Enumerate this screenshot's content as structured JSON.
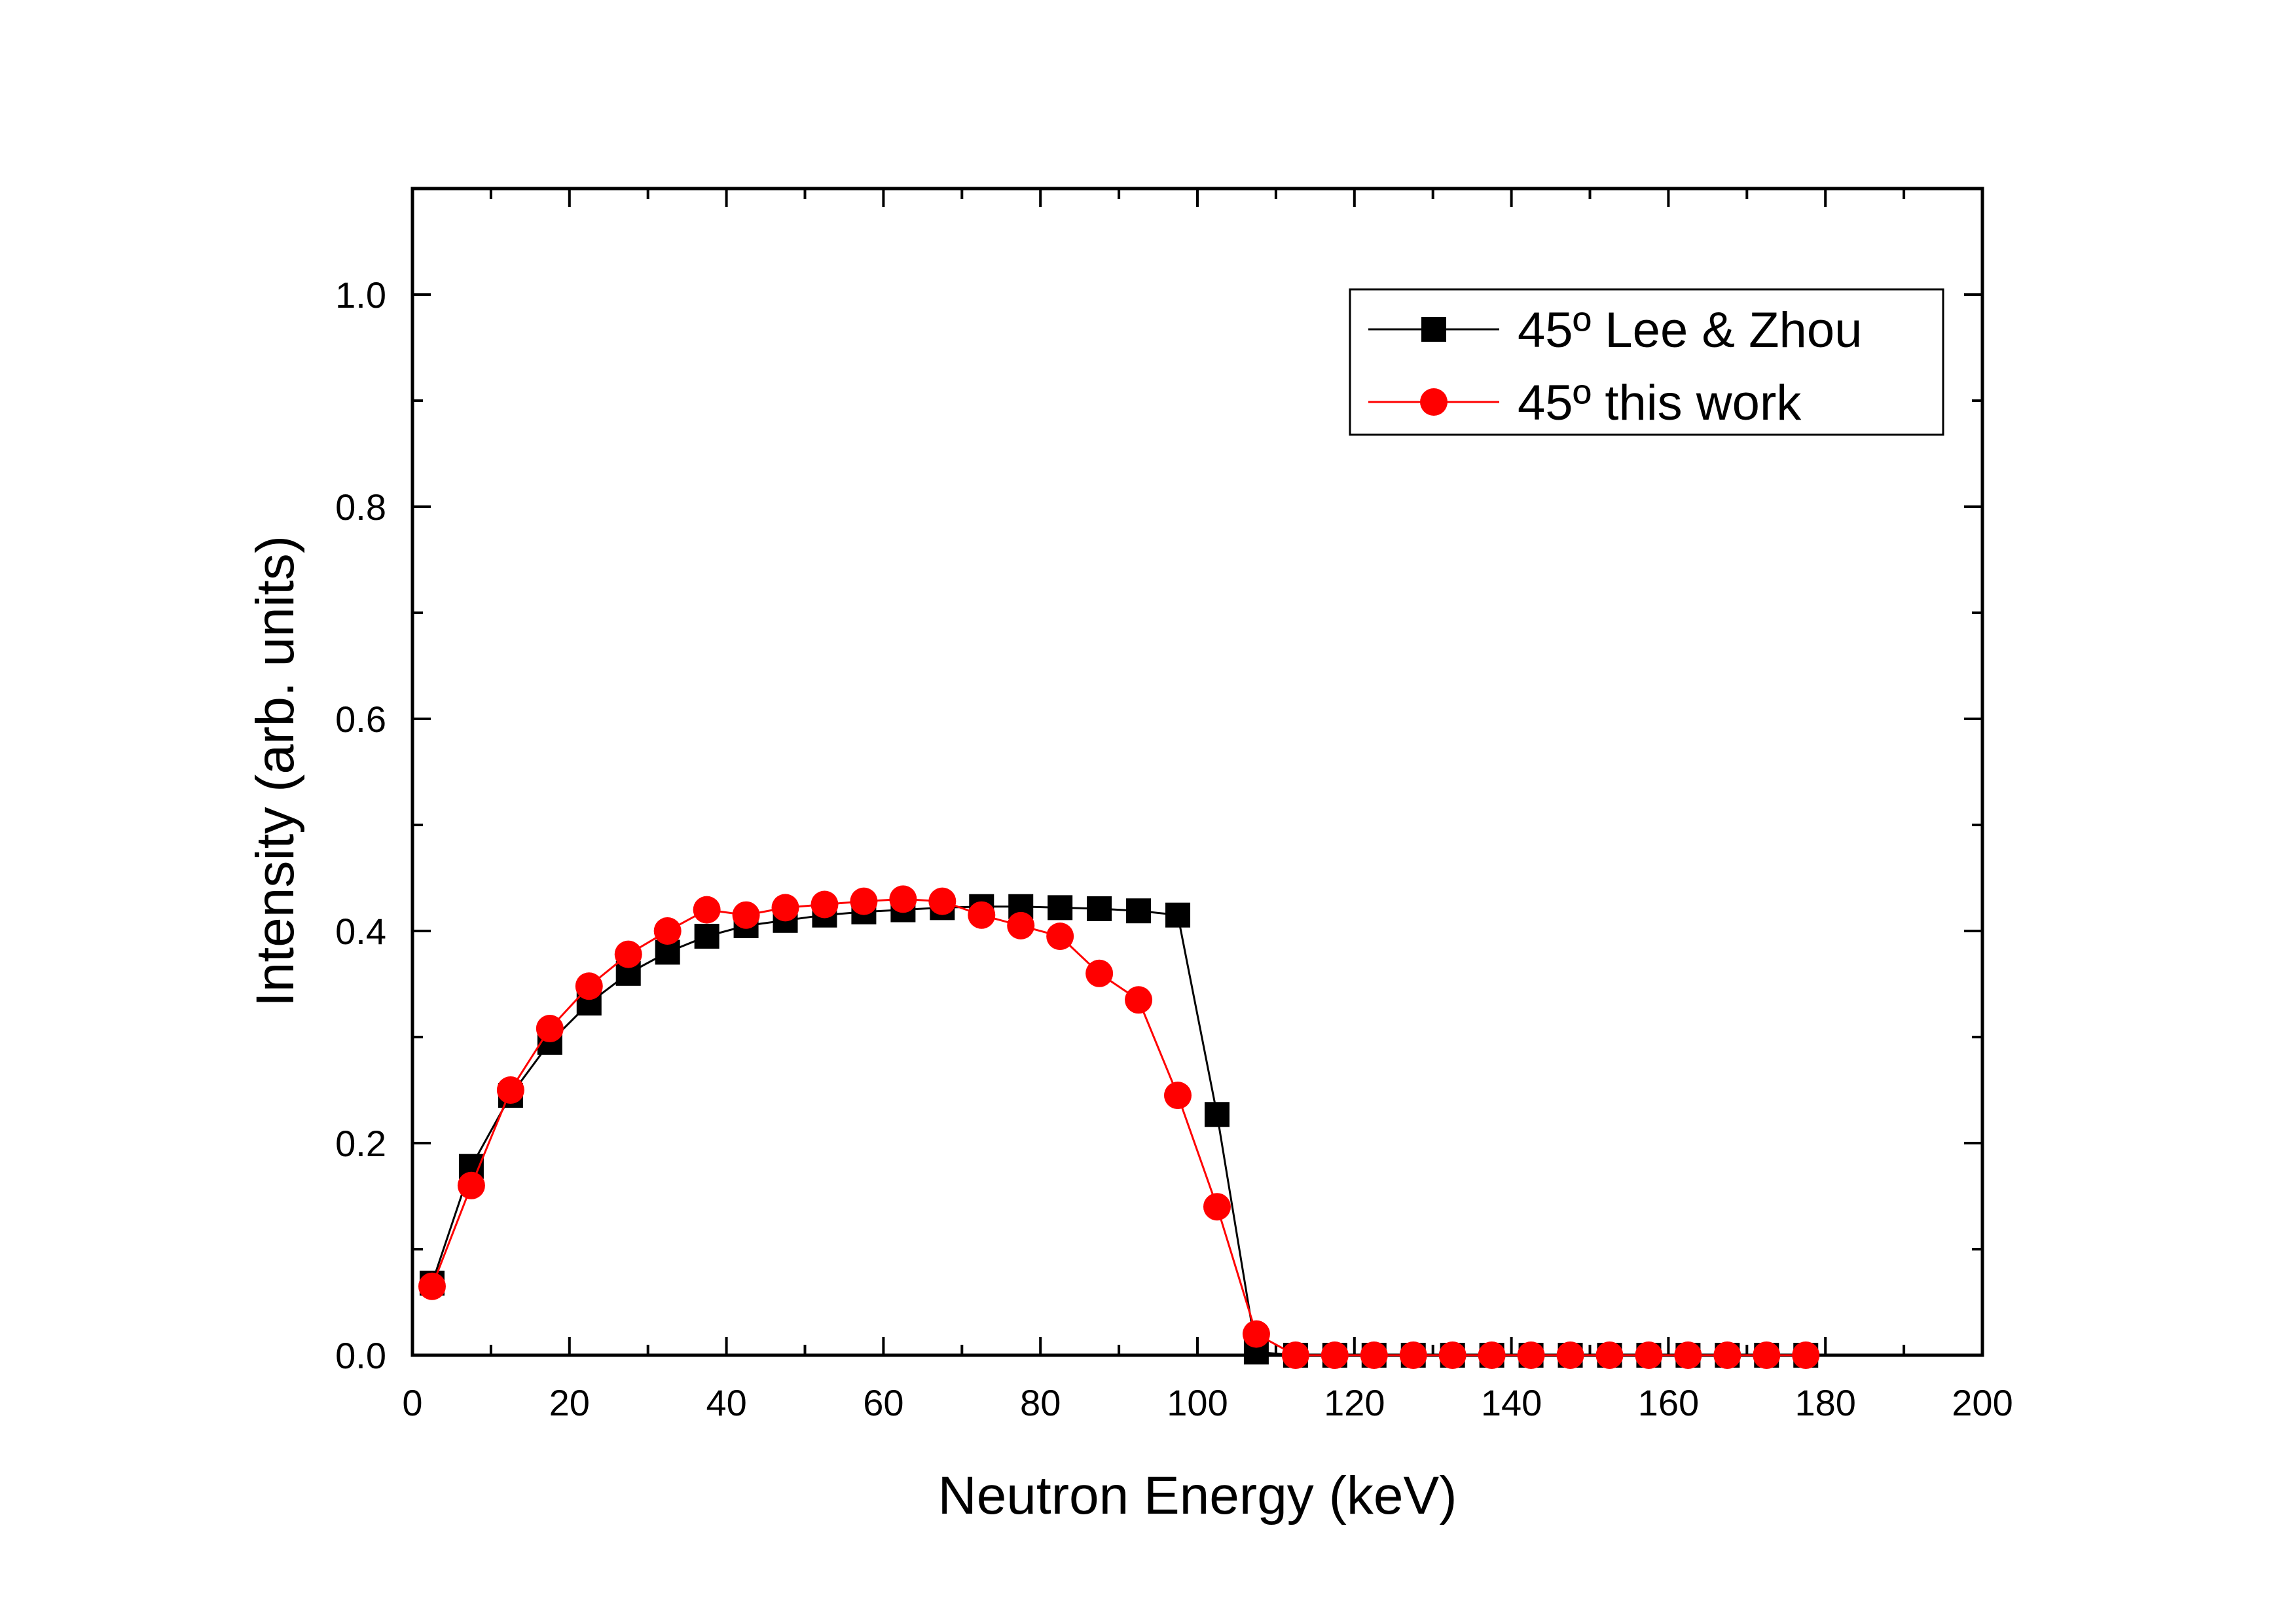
{
  "chart_data": {
    "type": "line",
    "xlabel": "Neutron Energy (keV)",
    "ylabel": "Intensity (arb. units)",
    "xlim": [
      0,
      200
    ],
    "ylim": [
      0,
      1.1
    ],
    "xticks": [
      "0",
      "20",
      "40",
      "60",
      "80",
      "100",
      "120",
      "140",
      "160",
      "180",
      "200"
    ],
    "yticks": [
      "0.0",
      "0.2",
      "0.4",
      "0.6",
      "0.8",
      "1.0"
    ],
    "legend_position": "top-right",
    "grid": false,
    "series": [
      {
        "name": "45º Lee & Zhou",
        "color": "#000000",
        "marker": "square",
        "x": [
          2.5,
          7.5,
          12.5,
          17.5,
          22.5,
          27.5,
          32.5,
          37.5,
          42.5,
          47.5,
          52.5,
          57.5,
          62.5,
          67.5,
          72.5,
          77.5,
          82.5,
          87.5,
          92.5,
          97.5,
          102.5,
          107.5,
          112.5,
          117.5,
          122.5,
          127.5,
          132.5,
          137.5,
          142.5,
          147.5,
          152.5,
          157.5,
          162.5,
          167.5,
          172.5,
          177.5
        ],
        "y": [
          0.068,
          0.178,
          0.245,
          0.295,
          0.332,
          0.36,
          0.38,
          0.395,
          0.405,
          0.41,
          0.415,
          0.418,
          0.42,
          0.422,
          0.423,
          0.423,
          0.422,
          0.421,
          0.419,
          0.415,
          0.227,
          0.003,
          0.0,
          0.0,
          0.0,
          0.0,
          0.0,
          0.0,
          0.0,
          0.0,
          0.0,
          0.0,
          0.0,
          0.0,
          0.0,
          0.0
        ]
      },
      {
        "name": "45º this work",
        "color": "#ff0000",
        "marker": "circle",
        "x": [
          2.5,
          7.5,
          12.5,
          17.5,
          22.5,
          27.5,
          32.5,
          37.5,
          42.5,
          47.5,
          52.5,
          57.5,
          62.5,
          67.5,
          72.5,
          77.5,
          82.5,
          87.5,
          92.5,
          97.5,
          102.5,
          107.5,
          112.5,
          117.5,
          122.5,
          127.5,
          132.5,
          137.5,
          142.5,
          147.5,
          152.5,
          157.5,
          162.5,
          167.5,
          172.5,
          177.5
        ],
        "y": [
          0.065,
          0.16,
          0.25,
          0.308,
          0.348,
          0.378,
          0.4,
          0.42,
          0.415,
          0.422,
          0.425,
          0.428,
          0.43,
          0.428,
          0.415,
          0.405,
          0.395,
          0.36,
          0.335,
          0.245,
          0.14,
          0.02,
          0.0,
          0.0,
          0.0,
          0.0,
          0.0,
          0.0,
          0.0,
          0.0,
          0.0,
          0.0,
          0.0,
          0.0,
          0.0,
          0.0
        ]
      }
    ]
  }
}
